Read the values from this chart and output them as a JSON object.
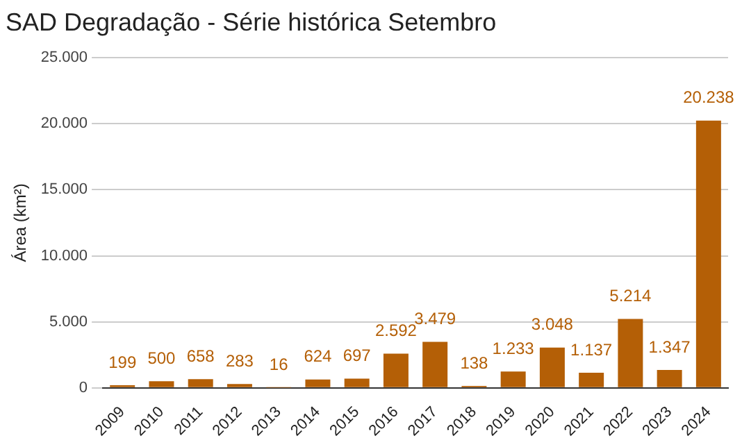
{
  "chart_data": {
    "type": "bar",
    "title": "SAD Degradação - Série histórica Setembro",
    "ylabel": "Área (km²)",
    "categories": [
      "2009",
      "2010",
      "2011",
      "2012",
      "2013",
      "2014",
      "2015",
      "2016",
      "2017",
      "2018",
      "2019",
      "2020",
      "2021",
      "2022",
      "2023",
      "2024"
    ],
    "values": [
      199,
      500,
      658,
      283,
      16,
      624,
      697,
      2592,
      3479,
      138,
      1233,
      3048,
      1137,
      5214,
      1347,
      20238
    ],
    "value_labels": [
      "199",
      "500",
      "658",
      "283",
      "16",
      "624",
      "697",
      "2.592",
      "3.479",
      "138",
      "1.233",
      "3.048",
      "1.137",
      "5.214",
      "1.347",
      "20.238"
    ],
    "color": "#b45f06",
    "ylim": [
      0,
      25000
    ],
    "yticks": [
      {
        "value": 0,
        "label": "0"
      },
      {
        "value": 5000,
        "label": "5.000"
      },
      {
        "value": 10000,
        "label": "10.000"
      },
      {
        "value": 15000,
        "label": "15.000"
      },
      {
        "value": 20000,
        "label": "20.000"
      },
      {
        "value": 25000,
        "label": "25.000"
      }
    ],
    "grid": "y",
    "legend": false
  }
}
